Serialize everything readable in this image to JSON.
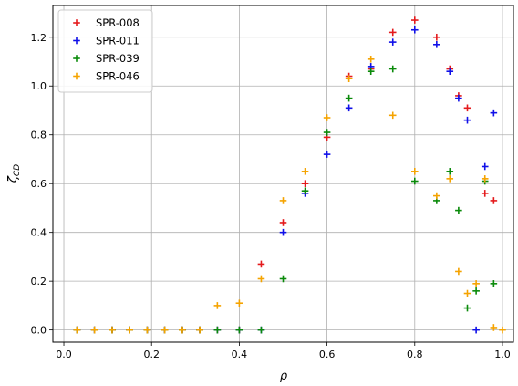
{
  "chart_data": {
    "type": "scatter",
    "xlabel": "ρ",
    "ylabel": "ζ",
    "ylabel_sub": "CD",
    "xlim": [
      -0.025,
      1.025
    ],
    "ylim": [
      -0.05,
      1.33
    ],
    "xticks": [
      0.0,
      0.2,
      0.4,
      0.6,
      0.8,
      1.0
    ],
    "xtick_labels": [
      "0.0",
      "0.2",
      "0.4",
      "0.6",
      "0.8",
      "1.0"
    ],
    "yticks": [
      0.0,
      0.2,
      0.4,
      0.6,
      0.8,
      1.0,
      1.2
    ],
    "ytick_labels": [
      "0.0",
      "0.2",
      "0.4",
      "0.6",
      "0.8",
      "1.0",
      "1.2"
    ],
    "grid": true,
    "legend_position": "top-left",
    "marker": "+",
    "series": [
      {
        "name": "SPR-008",
        "color": "#e41a1c",
        "points": [
          [
            0.03,
            0
          ],
          [
            0.07,
            0
          ],
          [
            0.11,
            0
          ],
          [
            0.15,
            0
          ],
          [
            0.19,
            0
          ],
          [
            0.23,
            0
          ],
          [
            0.27,
            0
          ],
          [
            0.31,
            0
          ],
          [
            0.35,
            0
          ],
          [
            0.4,
            0
          ],
          [
            0.45,
            0.27
          ],
          [
            0.5,
            0.44
          ],
          [
            0.55,
            0.6
          ],
          [
            0.6,
            0.79
          ],
          [
            0.65,
            1.04
          ],
          [
            0.7,
            1.07
          ],
          [
            0.75,
            1.22
          ],
          [
            0.8,
            1.27
          ],
          [
            0.85,
            1.2
          ],
          [
            0.88,
            1.07
          ],
          [
            0.9,
            0.96
          ],
          [
            0.92,
            0.91
          ],
          [
            0.96,
            0.56
          ],
          [
            0.98,
            0.53
          ]
        ]
      },
      {
        "name": "SPR-011",
        "color": "#1010e8",
        "points": [
          [
            0.03,
            0
          ],
          [
            0.07,
            0
          ],
          [
            0.11,
            0
          ],
          [
            0.15,
            0
          ],
          [
            0.19,
            0
          ],
          [
            0.23,
            0
          ],
          [
            0.27,
            0
          ],
          [
            0.31,
            0
          ],
          [
            0.35,
            0
          ],
          [
            0.4,
            0
          ],
          [
            0.45,
            0
          ],
          [
            0.5,
            0.4
          ],
          [
            0.55,
            0.56
          ],
          [
            0.6,
            0.72
          ],
          [
            0.65,
            0.91
          ],
          [
            0.7,
            1.08
          ],
          [
            0.75,
            1.18
          ],
          [
            0.8,
            1.23
          ],
          [
            0.85,
            1.17
          ],
          [
            0.88,
            1.06
          ],
          [
            0.9,
            0.95
          ],
          [
            0.92,
            0.86
          ],
          [
            0.94,
            0
          ],
          [
            0.96,
            0.67
          ],
          [
            0.98,
            0.89
          ]
        ]
      },
      {
        "name": "SPR-039",
        "color": "#0a8a0a",
        "points": [
          [
            0.03,
            0
          ],
          [
            0.07,
            0
          ],
          [
            0.11,
            0
          ],
          [
            0.15,
            0
          ],
          [
            0.19,
            0
          ],
          [
            0.23,
            0
          ],
          [
            0.27,
            0
          ],
          [
            0.31,
            0
          ],
          [
            0.35,
            0
          ],
          [
            0.4,
            0
          ],
          [
            0.45,
            0
          ],
          [
            0.5,
            0.21
          ],
          [
            0.55,
            0.57
          ],
          [
            0.6,
            0.81
          ],
          [
            0.65,
            0.95
          ],
          [
            0.7,
            1.06
          ],
          [
            0.75,
            1.07
          ],
          [
            0.8,
            0.61
          ],
          [
            0.85,
            0.53
          ],
          [
            0.88,
            0.65
          ],
          [
            0.9,
            0.49
          ],
          [
            0.92,
            0.09
          ],
          [
            0.94,
            0.16
          ],
          [
            0.96,
            0.61
          ],
          [
            0.98,
            0.19
          ]
        ]
      },
      {
        "name": "SPR-046",
        "color": "#f5a300",
        "points": [
          [
            0.03,
            0
          ],
          [
            0.07,
            0
          ],
          [
            0.11,
            0
          ],
          [
            0.15,
            0
          ],
          [
            0.19,
            0
          ],
          [
            0.23,
            0
          ],
          [
            0.27,
            0
          ],
          [
            0.31,
            0
          ],
          [
            0.35,
            0.1
          ],
          [
            0.4,
            0.11
          ],
          [
            0.45,
            0.21
          ],
          [
            0.5,
            0.53
          ],
          [
            0.55,
            0.65
          ],
          [
            0.6,
            0.87
          ],
          [
            0.65,
            1.03
          ],
          [
            0.7,
            1.11
          ],
          [
            0.75,
            0.88
          ],
          [
            0.8,
            0.65
          ],
          [
            0.85,
            0.55
          ],
          [
            0.88,
            0.62
          ],
          [
            0.9,
            0.24
          ],
          [
            0.92,
            0.15
          ],
          [
            0.94,
            0.19
          ],
          [
            0.96,
            0.62
          ],
          [
            0.98,
            0.01
          ],
          [
            1.0,
            0
          ]
        ]
      }
    ]
  }
}
